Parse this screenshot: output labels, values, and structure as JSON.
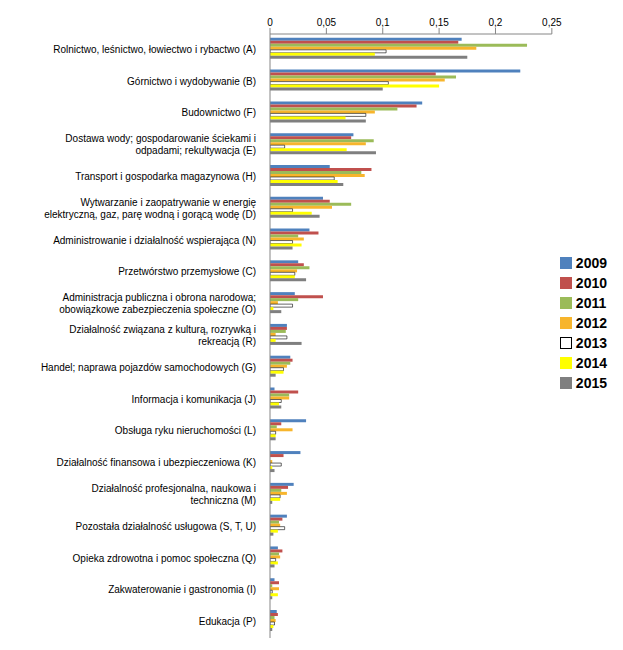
{
  "chart_data": {
    "type": "bar",
    "orientation": "horizontal",
    "grid": false,
    "legend": "right",
    "categories": [
      "Rolnictwo, leśnictwo, łowiectwo i rybactwo (A)",
      "Górnictwo i wydobywanie (B)",
      "Budownictwo (F)",
      "Dostawa wody; gospodarowanie ściekami i odpadami; rekultywacja (E)",
      "Transport i gospodarka magazynowa (H)",
      "Wytwarzanie i zaopatrywanie w energię elektryczną, gaz, parę wodną i gorącą wodę (D)",
      "Administrowanie i działalność wspierająca (N)",
      "Przetwórstwo przemysłowe (C)",
      "Administracja publiczna i obrona narodowa; obowiązkowe zabezpieczenia społeczne (O)",
      "Działalność związana z kulturą, rozrywką i rekreacją (R)",
      "Handel; naprawa pojazdów samochodowych (G)",
      "Informacja i komunikacja (J)",
      "Obsługa ryku nieruchomości (L)",
      "Działalność finansowa i ubezpieczeniowa (K)",
      "Działalność profesjonalna, naukowa i techniczna (M)",
      "Pozostała działalność usługowa (S, T, U)",
      "Opieka zdrowotna i pomoc społeczna (Q)",
      "Zakwaterowanie i gastronomia (I)",
      "Edukacja (P)"
    ],
    "xlim": [
      0,
      0.25
    ],
    "xticks": [
      0,
      {
        "value": 0.05,
        "label": "0,05"
      },
      {
        "value": 0.1,
        "label": "0,1"
      },
      {
        "value": 0.15,
        "label": "0,15"
      },
      {
        "value": 0.2,
        "label": "0,2"
      },
      {
        "value": 0.25,
        "label": "0,25"
      }
    ],
    "series": [
      {
        "name": "2009",
        "color": "#4F81BD",
        "values": [
          0.17,
          0.222,
          0.135,
          0.074,
          0.053,
          0.047,
          0.035,
          0.025,
          0.022,
          0.015,
          0.018,
          0.004,
          0.032,
          0.027,
          0.021,
          0.015,
          0.007,
          0.004,
          0.006
        ]
      },
      {
        "name": "2010",
        "color": "#C0504D",
        "values": [
          0.167,
          0.147,
          0.13,
          0.072,
          0.09,
          0.053,
          0.043,
          0.03,
          0.047,
          0.015,
          0.02,
          0.025,
          0.01,
          0.012,
          0.016,
          0.011,
          0.011,
          0.008,
          0.007
        ]
      },
      {
        "name": "2011",
        "color": "#9BBB59",
        "values": [
          0.228,
          0.165,
          0.113,
          0.092,
          0.081,
          0.072,
          0.025,
          0.035,
          0.025,
          0.014,
          0.018,
          0.017,
          0.006,
          0.0,
          0.01,
          0.008,
          0.008,
          0.002,
          0.004
        ]
      },
      {
        "name": "2012",
        "color": "#F7B52C",
        "values": [
          0.183,
          0.155,
          0.093,
          0.085,
          0.084,
          0.055,
          0.03,
          0.024,
          0.007,
          0.005,
          0.015,
          0.017,
          0.02,
          0.002,
          0.015,
          0.009,
          0.009,
          0.008,
          0.005
        ]
      },
      {
        "name": "2013",
        "color": "#FFFFFF",
        "values": [
          0.103,
          0.105,
          0.085,
          0.013,
          0.057,
          0.02,
          0.02,
          0.022,
          0.02,
          0.015,
          0.012,
          0.01,
          0.005,
          0.01,
          0.009,
          0.013,
          0.005,
          0.002,
          0.004
        ]
      },
      {
        "name": "2014",
        "color": "#FFFF00",
        "values": [
          0.093,
          0.15,
          0.067,
          0.068,
          0.06,
          0.037,
          0.028,
          0.022,
          0.003,
          0.005,
          0.012,
          0.008,
          0.005,
          0.002,
          0.009,
          0.007,
          0.007,
          0.007,
          0.003
        ]
      },
      {
        "name": "2015",
        "color": "#7F7F7F",
        "values": [
          0.175,
          0.1,
          0.085,
          0.094,
          0.065,
          0.044,
          0.02,
          0.032,
          0.01,
          0.028,
          0.005,
          0.01,
          0.005,
          0.004,
          0.002,
          0.003,
          0.004,
          0.002,
          0.002
        ]
      }
    ]
  }
}
